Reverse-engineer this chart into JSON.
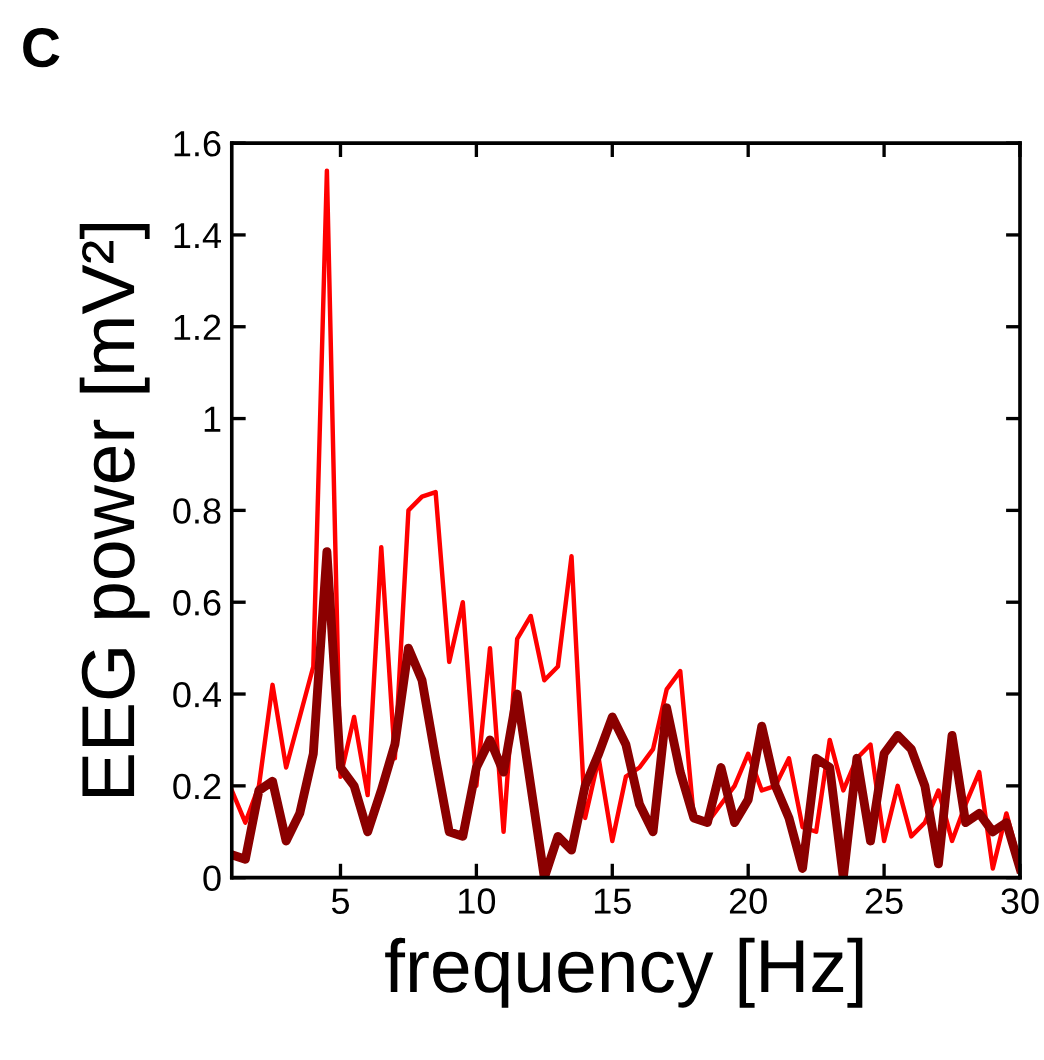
{
  "chart_data": {
    "type": "line",
    "xlabel": "frequency [Hz]",
    "ylabel": "EEG power [mV²]",
    "annotations": [
      "C"
    ],
    "x": [
      1,
      1.5,
      2,
      2.5,
      3,
      3.5,
      4,
      4.5,
      5,
      5.5,
      6,
      6.5,
      7,
      7.5,
      8,
      8.5,
      9,
      9.5,
      10,
      10.5,
      11,
      11.5,
      12,
      12.5,
      13,
      13.5,
      14,
      14.5,
      15,
      15.5,
      16,
      16.5,
      17,
      17.5,
      18,
      18.5,
      19,
      19.5,
      20,
      20.5,
      21,
      21.5,
      22,
      22.5,
      23,
      23.5,
      24,
      24.5,
      25,
      25.5,
      26,
      26.5,
      27,
      27.5,
      28,
      28.5,
      29,
      29.5,
      30
    ],
    "series": [
      {
        "color": "#ff0000",
        "values": [
          0.19,
          0.12,
          0.2,
          0.42,
          0.24,
          0.35,
          0.46,
          1.54,
          0.22,
          0.35,
          0.18,
          0.72,
          0.26,
          0.8,
          0.83,
          0.84,
          0.47,
          0.6,
          0.2,
          0.5,
          0.1,
          0.52,
          0.57,
          0.43,
          0.46,
          0.7,
          0.13,
          0.26,
          0.08,
          0.22,
          0.24,
          0.28,
          0.41,
          0.45,
          0.13,
          0.12,
          0.16,
          0.2,
          0.27,
          0.19,
          0.2,
          0.26,
          0.11,
          0.1,
          0.3,
          0.19,
          0.26,
          0.29,
          0.08,
          0.2,
          0.09,
          0.12,
          0.19,
          0.08,
          0.16,
          0.23,
          0.02,
          0.14,
          0.03
        ]
      },
      {
        "color": "#8b0000",
        "values": [
          0.05,
          0.04,
          0.19,
          0.21,
          0.08,
          0.14,
          0.27,
          0.71,
          0.24,
          0.2,
          0.1,
          0.19,
          0.29,
          0.5,
          0.43,
          0.26,
          0.1,
          0.09,
          0.24,
          0.3,
          0.23,
          0.4,
          0.2,
          0.0,
          0.09,
          0.06,
          0.2,
          0.27,
          0.35,
          0.29,
          0.16,
          0.1,
          0.37,
          0.23,
          0.13,
          0.12,
          0.24,
          0.12,
          0.17,
          0.33,
          0.2,
          0.13,
          0.02,
          0.26,
          0.24,
          0.0,
          0.26,
          0.08,
          0.27,
          0.31,
          0.28,
          0.2,
          0.03,
          0.31,
          0.12,
          0.14,
          0.1,
          0.12,
          0.02
        ]
      }
    ],
    "xlim": [
      1,
      30
    ],
    "xticks": [
      5,
      10,
      15,
      20,
      25,
      30
    ],
    "ylim": [
      0,
      1.6
    ],
    "yticks": [
      0,
      0.2,
      0.4,
      0.6,
      0.8,
      1,
      1.2,
      1.4,
      1.6
    ],
    "grid": false,
    "marker": "none",
    "line_style": "solid"
  }
}
